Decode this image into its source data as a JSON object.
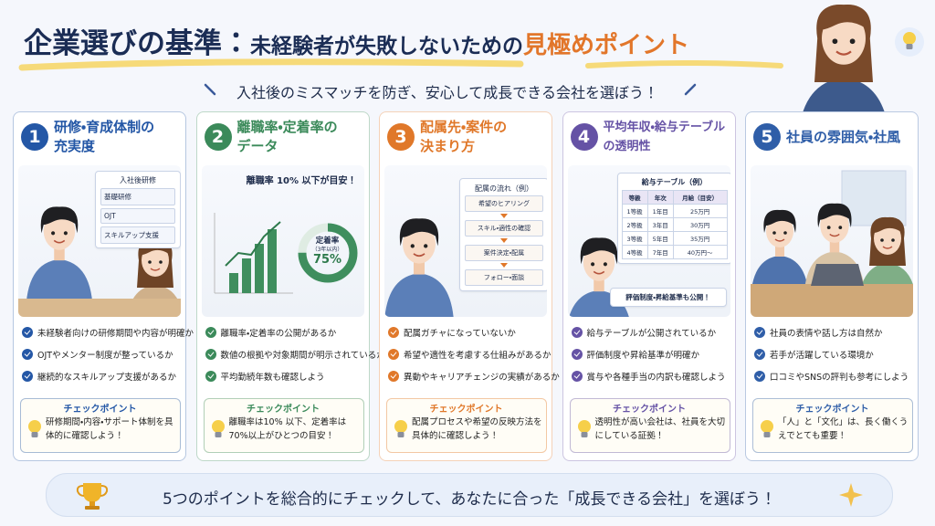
{
  "header": {
    "title": [
      "企業選びの基準：",
      "未経験者が失敗しないための",
      "見極めポイント"
    ],
    "subtitle": "入社後のミスマッチを防ぎ、安心して成長できる会社を選ぼう！"
  },
  "cards": [
    {
      "number": "1",
      "title": [
        "研修・育成体制の",
        "充実度"
      ],
      "color": "#2457a6",
      "training": {
        "title": "入社後研修",
        "items": [
          "基礎研修",
          "OJT",
          "スキルアップ支援"
        ]
      },
      "points": [
        "未経験者向けの研修期間や内容が明確か",
        "OJTやメンター制度が整っているか",
        "継続的なスキルアップ支援があるか"
      ],
      "check": {
        "label": "チェックポイント",
        "text": "研修期間・内容・サポート体制を具体的に確認しよう！"
      }
    },
    {
      "number": "2",
      "title": [
        "離職率・定着率の",
        "データ"
      ],
      "color": "#3b8a5a",
      "chart": {
        "note": "離職率 10% 以下が目安！",
        "donut_label": "定着率",
        "donut_sub": "（3年以内）",
        "donut_value": "75%"
      },
      "points": [
        "離職率・定着率の公開があるか",
        "数値の根拠や対象期間が明示されているか",
        "平均勤続年数も確認しよう"
      ],
      "check": {
        "label": "チェックポイント",
        "text": "離職率は10% 以下、定着率は70%以上がひとつの目安！"
      }
    },
    {
      "number": "3",
      "title": [
        "配属先・案件の",
        "決まり方"
      ],
      "color": "#e0782a",
      "flow": {
        "title": "配属の流れ（例）",
        "steps": [
          "希望のヒアリング",
          "スキル・適性の確認",
          "案件決定・配属",
          "フォロー・面談"
        ]
      },
      "points": [
        "配属ガチャになっていないか",
        "希望や適性を考慮する仕組みがあるか",
        "異動やキャリアチェンジの実績があるか"
      ],
      "check": {
        "label": "チェックポイント",
        "text": "配属プロセスや希望の反映方法を具体的に確認しよう！"
      }
    },
    {
      "number": "4",
      "title": [
        "平均年収・給与テーブル",
        "の透明性"
      ],
      "color": "#6552a5",
      "table": {
        "title": "給与テーブル（例）",
        "headers": [
          "等級",
          "年次",
          "月給（目安）"
        ],
        "rows": [
          [
            "1等級",
            "1年目",
            "25万円"
          ],
          [
            "2等級",
            "3年目",
            "30万円"
          ],
          [
            "3等級",
            "5年目",
            "35万円"
          ],
          [
            "4等級",
            "7年目",
            "40万円～"
          ]
        ],
        "note": "評価制度・昇給基準も公開！"
      },
      "points": [
        "給与テーブルが公開されているか",
        "評価制度や昇給基準が明確か",
        "賞与や各種手当の内訳も確認しよう"
      ],
      "check": {
        "label": "チェックポイント",
        "text": "透明性が高い会社は、社員を大切にしている証拠！"
      }
    },
    {
      "number": "5",
      "title": [
        "社員の雰囲気・社風"
      ],
      "color": "#2f5ea8",
      "points": [
        "社員の表情や話し方は自然か",
        "若手が活躍している環境か",
        "口コミやSNSの評判も参考にしよう"
      ],
      "check": {
        "label": "チェックポイント",
        "text": "「人」と「文化」は、長く働くうえでとても重要！"
      }
    }
  ],
  "footer": {
    "text": "5つのポイントを総合的にチェックして、あなたに合った「成長できる会社」を選ぼう！"
  }
}
